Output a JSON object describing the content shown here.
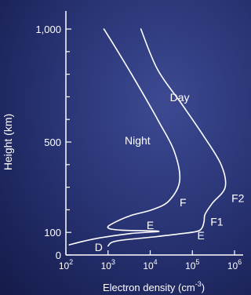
{
  "chart_data": {
    "type": "line",
    "xlabel": "Electron density (cm",
    "xlabel_unit_exp": "-3",
    "xlabel_close": ")",
    "ylabel": "Height (km)",
    "x_scale": "log",
    "xlim": [
      100,
      1000000
    ],
    "ylim": [
      0,
      1000
    ],
    "x_ticks": [
      {
        "value": 100,
        "base": "10",
        "exp": "2"
      },
      {
        "value": 1000,
        "base": "10",
        "exp": "3"
      },
      {
        "value": 10000,
        "base": "10",
        "exp": "4"
      },
      {
        "value": 100000,
        "base": "10",
        "exp": "5"
      },
      {
        "value": 1000000,
        "base": "10",
        "exp": "6"
      }
    ],
    "y_ticks": [
      {
        "value": 0,
        "label": "0"
      },
      {
        "value": 100,
        "label": "100"
      },
      {
        "value": 500,
        "label": "500"
      },
      {
        "value": 1000,
        "label": "1,000"
      }
    ],
    "grid": false,
    "series": [
      {
        "name": "Night",
        "color": "#ffffff",
        "points": [
          [
            120,
            45
          ],
          [
            250,
            60
          ],
          [
            600,
            75
          ],
          [
            3500,
            95
          ],
          [
            16000,
            105
          ],
          [
            2000,
            110
          ],
          [
            1000,
            120
          ],
          [
            1300,
            140
          ],
          [
            3500,
            175
          ],
          [
            11000,
            200
          ],
          [
            28000,
            240
          ],
          [
            50000,
            330
          ],
          [
            37000,
            460
          ],
          [
            16000,
            590
          ],
          [
            6000,
            730
          ],
          [
            2000,
            880
          ],
          [
            800,
            1000
          ]
        ]
      },
      {
        "name": "Day",
        "color": "#ffffff",
        "points": [
          [
            1000,
            40
          ],
          [
            1200,
            55
          ],
          [
            2000,
            65
          ],
          [
            12000,
            80
          ],
          [
            60000,
            95
          ],
          [
            130000,
            105
          ],
          [
            170000,
            120
          ],
          [
            190000,
            150
          ],
          [
            200000,
            180
          ],
          [
            300000,
            230
          ],
          [
            600000,
            300
          ],
          [
            480000,
            400
          ],
          [
            180000,
            530
          ],
          [
            55000,
            670
          ],
          [
            15000,
            820
          ],
          [
            6000,
            1000
          ]
        ]
      }
    ],
    "annotations": [
      {
        "text": "Night",
        "x": 5000,
        "y": 490
      },
      {
        "text": "Day",
        "x": 50000,
        "y": 680
      },
      {
        "text": "F",
        "x": 60000,
        "y": 215
      },
      {
        "text": "E",
        "x": 10000,
        "y": 115
      },
      {
        "text": "D",
        "x": 600,
        "y": 18
      },
      {
        "text": "F2",
        "x": 1200000,
        "y": 235
      },
      {
        "text": "F1",
        "x": 380000,
        "y": 130
      },
      {
        "text": "E",
        "x": 160000,
        "y": 70
      }
    ]
  }
}
